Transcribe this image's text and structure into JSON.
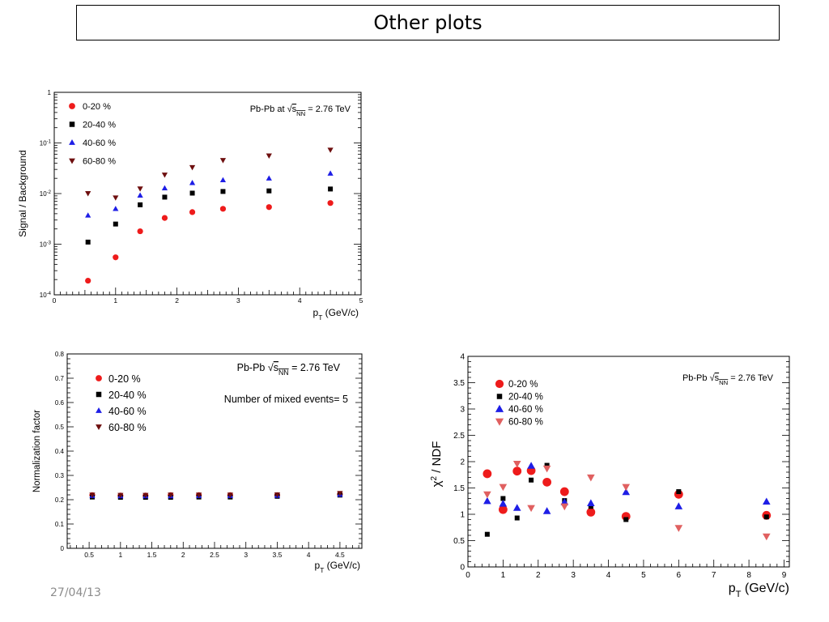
{
  "slide": {
    "title": "Other plots",
    "date": "27/04/13"
  },
  "chart_data": [
    {
      "type": "scatter",
      "scale": "log",
      "xlabel": "",
      "ylabel": "Signal / Background",
      "xtitle_main": "p",
      "xtitle_sub": "T",
      "xtitle_rest": " (GeV/c)",
      "ann_pre": "Pb-Pb at ",
      "ann_rad": "s",
      "ann_sub": "NN",
      "ann_post": " = 2.76 TeV",
      "xlim": [
        0,
        5
      ],
      "ylim": [
        0.0001,
        1
      ],
      "xticks": [
        "0",
        "1",
        "2",
        "3",
        "4",
        "5"
      ],
      "yticks": [
        {
          "b": "10",
          "e": "-4",
          "v": 0.0001
        },
        {
          "b": "10",
          "e": "-3",
          "v": 0.001
        },
        {
          "b": "10",
          "e": "-2",
          "v": 0.01
        },
        {
          "b": "10",
          "e": "-1",
          "v": 0.1
        },
        {
          "b": "1",
          "e": "",
          "v": 1
        }
      ],
      "legend_position": "top-left",
      "x": [
        0.55,
        1.0,
        1.4,
        1.8,
        2.25,
        2.75,
        3.5,
        4.5
      ],
      "series": [
        {
          "name": "0-20 %",
          "color": "#ee1b1b",
          "marker": "circle",
          "values": [
            0.00019,
            0.00055,
            0.0018,
            0.0033,
            0.0043,
            0.005,
            0.0054,
            0.0065
          ]
        },
        {
          "name": "20-40 %",
          "color": "#000000",
          "marker": "square",
          "values": [
            0.0011,
            0.0025,
            0.006,
            0.0085,
            0.0102,
            0.011,
            0.0113,
            0.0123
          ]
        },
        {
          "name": "40-60 %",
          "color": "#1e1ee6",
          "marker": "triangle",
          "values": [
            0.0037,
            0.005,
            0.0092,
            0.0128,
            0.0163,
            0.0185,
            0.02,
            0.025
          ]
        },
        {
          "name": "60-80 %",
          "color": "#6e0f0f",
          "marker": "triangle-down",
          "values": [
            0.0101,
            0.0083,
            0.0125,
            0.0235,
            0.033,
            0.0455,
            0.056,
            0.073
          ]
        }
      ]
    },
    {
      "type": "scatter",
      "xlabel": "",
      "ylabel": "Normalization factor",
      "xtitle_main": "p",
      "xtitle_sub": "T",
      "xtitle_rest": " (GeV/c)",
      "ann_pre": "Pb-Pb ",
      "ann_rad": "s",
      "ann_sub": "NN",
      "ann_post": " = 2.76 TeV",
      "ann2": "Number of mixed events= 5",
      "xlim": [
        0.15,
        4.85
      ],
      "ylim": [
        0,
        0.8
      ],
      "xticks": [
        "0.5",
        "1",
        "1.5",
        "2",
        "2.5",
        "3",
        "3.5",
        "4",
        "4.5"
      ],
      "yticks": [
        "0",
        "0.1",
        "0.2",
        "0.3",
        "0.4",
        "0.5",
        "0.6",
        "0.7",
        "0.8"
      ],
      "legend_position": "top-left",
      "x": [
        0.55,
        1.0,
        1.4,
        1.8,
        2.25,
        2.75,
        3.5,
        4.5
      ],
      "series": [
        {
          "name": "0-20 %",
          "color": "#ee1b1b",
          "marker": "circle",
          "values": [
            0.219,
            0.217,
            0.217,
            0.219,
            0.219,
            0.219,
            0.219,
            0.223
          ]
        },
        {
          "name": "20-40 %",
          "color": "#000000",
          "marker": "square",
          "values": [
            0.211,
            0.21,
            0.21,
            0.21,
            0.211,
            0.211,
            0.214,
            0.219
          ]
        },
        {
          "name": "40-60 %",
          "color": "#1e1ee6",
          "marker": "triangle",
          "values": [
            0.216,
            0.215,
            0.215,
            0.215,
            0.216,
            0.216,
            0.217,
            0.221
          ]
        },
        {
          "name": "60-80 %",
          "color": "#6e0f0f",
          "marker": "triangle-down",
          "values": [
            0.22,
            0.219,
            0.219,
            0.22,
            0.22,
            0.22,
            0.221,
            0.227
          ]
        }
      ]
    },
    {
      "type": "scatter",
      "xlabel": "",
      "ylabel": "χ² / NDF",
      "ylabel_main": "χ",
      "ylabel_sup": "2",
      "ylabel_rest": " / NDF",
      "xtitle_main": "p",
      "xtitle_sub": "T",
      "xtitle_rest": " (GeV/c)",
      "ann_pre": "Pb-Pb ",
      "ann_rad": "s",
      "ann_sub": "NN",
      "ann_post": " = 2.76 TeV",
      "xlim": [
        0,
        9.15
      ],
      "ylim": [
        0,
        4
      ],
      "xticks": [
        "0",
        "1",
        "2",
        "3",
        "4",
        "5",
        "6",
        "7",
        "8",
        "9"
      ],
      "yticks": [
        "0",
        "0.5",
        "1",
        "1.5",
        "2",
        "2.5",
        "3",
        "3.5",
        "4"
      ],
      "legend_position": "top-left",
      "series": [
        {
          "name": "0-20 %",
          "color": "#ee1b1b",
          "marker": "circle",
          "x": [
            0.55,
            1.0,
            1.4,
            1.8,
            2.25,
            2.75,
            3.5,
            4.5,
            6.0,
            8.5
          ],
          "values": [
            1.77,
            1.09,
            1.82,
            1.83,
            1.61,
            1.43,
            1.04,
            0.96,
            1.38,
            0.98
          ]
        },
        {
          "name": "20-40 %",
          "color": "#000000",
          "marker": "square",
          "x": [
            0.55,
            1.0,
            1.4,
            1.8,
            2.25,
            2.75,
            3.5,
            4.5,
            6.0,
            8.5
          ],
          "values": [
            0.62,
            1.3,
            0.93,
            1.65,
            1.93,
            1.26,
            1.15,
            0.9,
            1.43,
            0.95
          ]
        },
        {
          "name": "40-60 %",
          "color": "#1e1ee6",
          "marker": "triangle",
          "x": [
            0.55,
            1.0,
            1.4,
            1.8,
            2.25,
            2.75,
            3.5,
            4.5,
            6.0,
            8.5
          ],
          "values": [
            1.25,
            1.2,
            1.12,
            1.92,
            1.06,
            1.23,
            1.21,
            1.42,
            1.15,
            1.24
          ]
        },
        {
          "name": "60-80 %",
          "color": "#e06060",
          "marker": "triangle-down",
          "x": [
            0.55,
            1.0,
            1.4,
            1.8,
            2.25,
            2.75,
            3.5,
            4.5,
            6.0,
            8.5
          ],
          "values": [
            1.38,
            1.52,
            1.96,
            1.12,
            1.87,
            1.15,
            1.7,
            1.52,
            0.74,
            0.58
          ]
        }
      ]
    }
  ]
}
